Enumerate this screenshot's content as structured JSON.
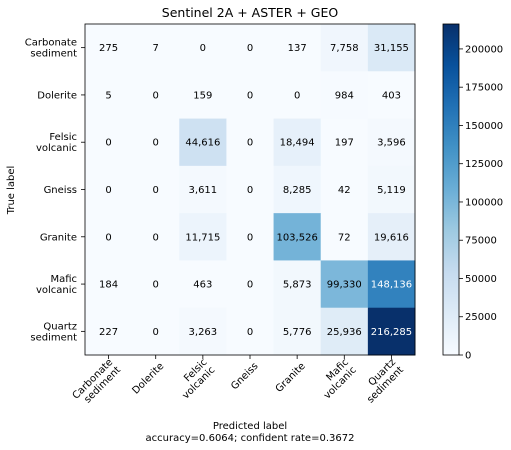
{
  "chart_data": {
    "type": "heatmap",
    "title": "Sentinel 2A + ASTER + GEO",
    "xlabel": "Predicted label",
    "ylabel": "True label",
    "footer": "accuracy=0.6064; confident rate=0.3672",
    "row_labels": [
      [
        "Carbonate",
        "sediment"
      ],
      [
        "Dolerite"
      ],
      [
        "Felsic",
        "volcanic"
      ],
      [
        "Gneiss"
      ],
      [
        "Granite"
      ],
      [
        "Mafic",
        "volcanic"
      ],
      [
        "Quartz",
        "sediment"
      ]
    ],
    "col_labels": [
      [
        "Carbonate",
        "sediment"
      ],
      [
        "Dolerite"
      ],
      [
        "Felsic",
        "volcanic"
      ],
      [
        "Gneiss"
      ],
      [
        "Granite"
      ],
      [
        "Mafic",
        "volcanic"
      ],
      [
        "Quartz",
        "sediment"
      ]
    ],
    "values": [
      [
        275,
        7,
        0,
        0,
        137,
        7758,
        31155
      ],
      [
        5,
        0,
        159,
        0,
        0,
        984,
        403
      ],
      [
        0,
        0,
        44616,
        0,
        18494,
        197,
        3596
      ],
      [
        0,
        0,
        3611,
        0,
        8285,
        42,
        5119
      ],
      [
        0,
        0,
        11715,
        0,
        103526,
        72,
        19616
      ],
      [
        184,
        0,
        463,
        0,
        5873,
        99330,
        148136
      ],
      [
        227,
        0,
        3263,
        0,
        5776,
        25936,
        216285
      ]
    ],
    "colorbar": {
      "colormap": "Blues",
      "vmin": 0,
      "vmax": 216285,
      "ticks": [
        0,
        25000,
        50000,
        75000,
        100000,
        125000,
        150000,
        175000,
        200000
      ]
    }
  }
}
